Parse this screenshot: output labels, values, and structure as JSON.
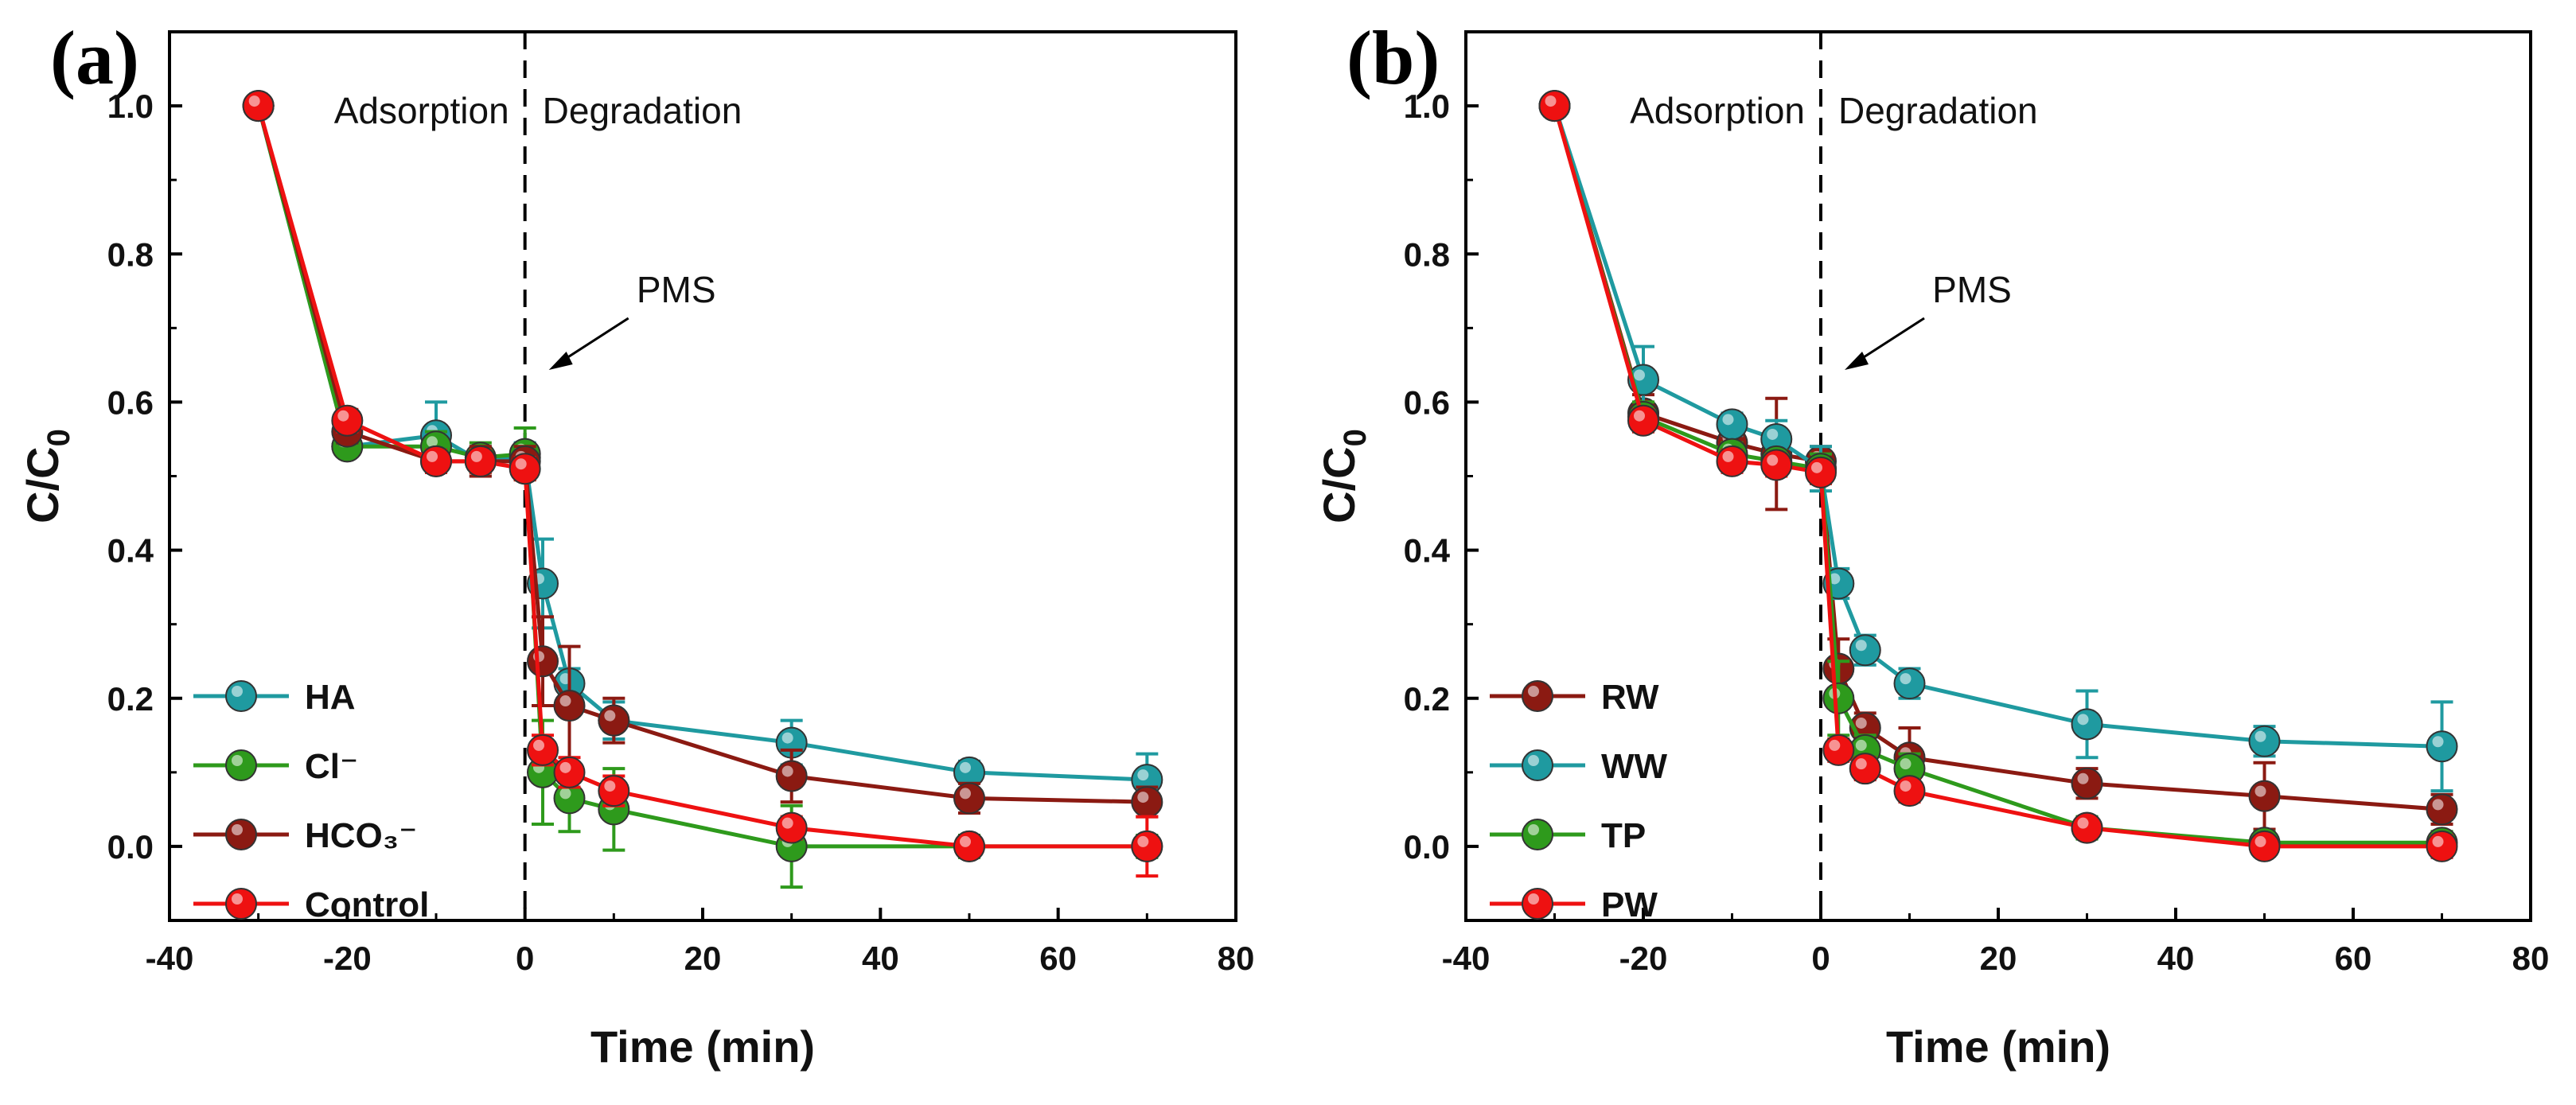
{
  "chart_data": [
    {
      "type": "line",
      "panel_label": "(a)",
      "xlabel": "Time (min)",
      "ylabel": "C/C",
      "ylabel_sub": "0",
      "xlim": [
        -40,
        80
      ],
      "ylim": [
        -0.1,
        1.1
      ],
      "xticks": [
        -40,
        -20,
        0,
        20,
        40,
        60,
        80
      ],
      "yticks": [
        0.0,
        0.2,
        0.4,
        0.6,
        0.8,
        1.0
      ],
      "xtick_labels": [
        "-40",
        "-20",
        "0",
        "20",
        "40",
        "60",
        "80"
      ],
      "ytick_labels": [
        "0.0",
        "0.2",
        "0.4",
        "0.6",
        "0.8",
        "1.0"
      ],
      "phase_left": "Adsorption",
      "phase_right": "Degradation",
      "annotation": "PMS",
      "divider_x": 0,
      "legend_position": "bottom-left",
      "series": [
        {
          "name": "HA",
          "color": "#1f9aa0",
          "x": [
            -30,
            -20,
            -10,
            -5,
            0,
            2,
            5,
            10,
            30,
            50,
            70
          ],
          "values": [
            1.0,
            0.54,
            0.555,
            0.52,
            0.525,
            0.355,
            0.22,
            0.17,
            0.14,
            0.1,
            0.09
          ],
          "errors": [
            0,
            0.01,
            0.045,
            0.02,
            0.02,
            0.06,
            0.02,
            0.025,
            0.03,
            0.015,
            0.035
          ]
        },
        {
          "name": "Cl⁻",
          "color": "#2e9a1c",
          "x": [
            -30,
            -20,
            -10,
            -5,
            0,
            2,
            5,
            10,
            30,
            50,
            70
          ],
          "values": [
            1.0,
            0.54,
            0.54,
            0.525,
            0.53,
            0.1,
            0.065,
            0.05,
            0.0,
            0.0,
            0.0
          ],
          "errors": [
            0,
            0.01,
            0.02,
            0.02,
            0.035,
            0.07,
            0.045,
            0.055,
            0.055,
            0.015,
            0.015
          ]
        },
        {
          "name": "HCO₃⁻",
          "color": "#8b1a12",
          "x": [
            -30,
            -20,
            -10,
            -5,
            0,
            2,
            5,
            10,
            30,
            50,
            70
          ],
          "values": [
            1.0,
            0.56,
            0.52,
            0.52,
            0.52,
            0.25,
            0.19,
            0.17,
            0.095,
            0.065,
            0.06
          ],
          "errors": [
            0,
            0.015,
            0.015,
            0.02,
            0.02,
            0.06,
            0.08,
            0.03,
            0.035,
            0.02,
            0.02
          ]
        },
        {
          "name": "Control",
          "color": "#ee1111",
          "x": [
            -30,
            -20,
            -10,
            -5,
            0,
            2,
            5,
            10,
            30,
            50,
            70
          ],
          "values": [
            1.0,
            0.575,
            0.52,
            0.52,
            0.51,
            0.13,
            0.1,
            0.075,
            0.025,
            0.0,
            0.0
          ],
          "errors": [
            0,
            0.015,
            0.015,
            0.015,
            0.015,
            0.02,
            0.02,
            0.02,
            0.015,
            0.01,
            0.04
          ]
        }
      ]
    },
    {
      "type": "line",
      "panel_label": "(b)",
      "xlabel": "Time (min)",
      "ylabel": "C/C",
      "ylabel_sub": "0",
      "xlim": [
        -40,
        80
      ],
      "ylim": [
        -0.1,
        1.1
      ],
      "xticks": [
        -40,
        -20,
        0,
        20,
        40,
        60,
        80
      ],
      "yticks": [
        0.0,
        0.2,
        0.4,
        0.6,
        0.8,
        1.0
      ],
      "xtick_labels": [
        "-40",
        "-20",
        "0",
        "20",
        "40",
        "60",
        "80"
      ],
      "ytick_labels": [
        "0.0",
        "0.2",
        "0.4",
        "0.6",
        "0.8",
        "1.0"
      ],
      "phase_left": "Adsorption",
      "phase_right": "Degradation",
      "annotation": "PMS",
      "divider_x": 0,
      "legend_position": "bottom-left",
      "series": [
        {
          "name": "RW",
          "color": "#8b1a12",
          "x": [
            -30,
            -20,
            -10,
            -5,
            0,
            2,
            5,
            10,
            30,
            50,
            70
          ],
          "values": [
            1.0,
            0.585,
            0.545,
            0.53,
            0.52,
            0.24,
            0.16,
            0.12,
            0.085,
            0.068,
            0.05
          ],
          "errors": [
            0,
            0.025,
            0.02,
            0.075,
            0.02,
            0.04,
            0.02,
            0.04,
            0.02,
            0.045,
            0.02
          ]
        },
        {
          "name": "WW",
          "color": "#1f9aa0",
          "x": [
            -30,
            -20,
            -10,
            -5,
            0,
            2,
            5,
            10,
            30,
            50,
            70
          ],
          "values": [
            1.0,
            0.63,
            0.57,
            0.55,
            0.51,
            0.355,
            0.265,
            0.22,
            0.165,
            0.142,
            0.135
          ],
          "errors": [
            0,
            0.045,
            0.015,
            0.025,
            0.03,
            0.02,
            0.02,
            0.02,
            0.045,
            0.02,
            0.06
          ]
        },
        {
          "name": "TP",
          "color": "#2e9a1c",
          "x": [
            -30,
            -20,
            -10,
            -5,
            0,
            2,
            5,
            10,
            30,
            50,
            70
          ],
          "values": [
            1.0,
            0.58,
            0.53,
            0.52,
            0.51,
            0.2,
            0.13,
            0.105,
            0.025,
            0.005,
            0.005
          ],
          "errors": [
            0,
            0.02,
            0.015,
            0.015,
            0.02,
            0.05,
            0.02,
            0.02,
            0.015,
            0.015,
            0.015
          ]
        },
        {
          "name": "PW",
          "color": "#ee1111",
          "x": [
            -30,
            -20,
            -10,
            -5,
            0,
            2,
            5,
            10,
            30,
            50,
            70
          ],
          "values": [
            1.0,
            0.575,
            0.52,
            0.515,
            0.505,
            0.13,
            0.105,
            0.075,
            0.025,
            0.0,
            0.0
          ],
          "errors": [
            0,
            0.015,
            0.015,
            0.015,
            0.015,
            0.015,
            0.015,
            0.015,
            0.01,
            0.01,
            0.015
          ]
        }
      ]
    }
  ]
}
